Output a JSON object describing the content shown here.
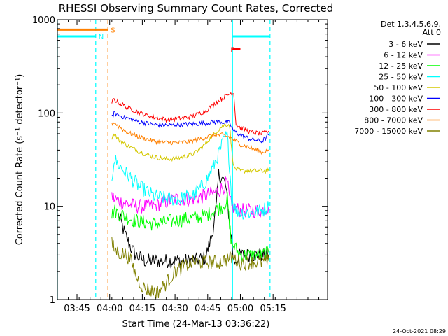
{
  "chart_data": {
    "type": "line",
    "title": "RHESSI Observing Summary Count Rates, Corrected",
    "xlabel": "Start Time (24-Mar-13 03:36:22)",
    "ylabel": "Corrected Count Rate (s⁻¹ detector⁻¹)",
    "yscale": "log",
    "ylim": [
      1,
      1000
    ],
    "xlim_min": [
      216,
      340
    ],
    "y_ticks": [
      {
        "value": 1,
        "label": "1"
      },
      {
        "value": 10,
        "label": "10"
      },
      {
        "value": 100,
        "label": "100"
      },
      {
        "value": 1000,
        "label": "1000"
      }
    ],
    "x_ticks": [
      {
        "value": 225,
        "label": "03:45"
      },
      {
        "value": 240,
        "label": "04:00"
      },
      {
        "value": 255,
        "label": "04:15"
      },
      {
        "value": 270,
        "label": "04:30"
      },
      {
        "value": 285,
        "label": "04:45"
      },
      {
        "value": 300,
        "label": "05:00"
      },
      {
        "value": 315,
        "label": "05:15"
      }
    ],
    "legend_header": [
      "Det 1,3,4,5,6,9,",
      "Att 0"
    ],
    "series": [
      {
        "name": "3 - 6 keV",
        "color": "#000000",
        "x": [
          244,
          245,
          247,
          250,
          252,
          256,
          262,
          270,
          278,
          284,
          287,
          289,
          290,
          293,
          295,
          297,
          300,
          304,
          310,
          313
        ],
        "y": [
          8,
          7,
          5,
          3.5,
          3,
          2.6,
          2.6,
          2.6,
          2.6,
          2.8,
          5,
          10,
          22,
          18,
          7,
          2.5,
          3,
          3,
          3,
          3
        ]
      },
      {
        "name": "6 - 12 keV",
        "color": "#ff00ff",
        "x": [
          241,
          242,
          246,
          252,
          260,
          270,
          278,
          284,
          288,
          292,
          294,
          295,
          296,
          300,
          305,
          310,
          313
        ],
        "y": [
          13,
          12,
          11,
          10,
          10,
          12,
          12,
          13,
          14,
          16,
          18,
          12,
          10,
          9,
          9,
          9,
          10
        ]
      },
      {
        "name": "12 - 25 keV",
        "color": "#00ff00",
        "x": [
          241,
          242,
          246,
          252,
          260,
          270,
          278,
          284,
          288,
          292,
          294,
          295,
          296,
          300,
          305,
          310,
          313
        ],
        "y": [
          8,
          9,
          8,
          7,
          6.5,
          7,
          7.5,
          8,
          9,
          10,
          12,
          6,
          4,
          3,
          3,
          3,
          3.2
        ]
      },
      {
        "name": "25 - 50 keV",
        "color": "#00ffff",
        "x": [
          241,
          242,
          244,
          248,
          254,
          260,
          266,
          272,
          278,
          282,
          285,
          288,
          291,
          293,
          294,
          295,
          296,
          298,
          302,
          306,
          310,
          313
        ],
        "y": [
          20,
          32,
          28,
          22,
          16,
          13,
          12,
          12,
          13,
          16,
          20,
          28,
          42,
          55,
          55,
          28,
          12,
          9,
          8.5,
          8.5,
          9,
          10
        ]
      },
      {
        "name": "50 - 100 keV",
        "color": "#d4c800",
        "x": [
          241,
          242,
          244,
          248,
          254,
          260,
          266,
          272,
          278,
          282,
          285,
          288,
          291,
          293,
          295,
          296,
          297,
          300,
          305,
          310,
          313
        ],
        "y": [
          55,
          60,
          52,
          45,
          38,
          34,
          32,
          33,
          36,
          42,
          50,
          60,
          70,
          75,
          75,
          40,
          26,
          24,
          24,
          24,
          24
        ]
      },
      {
        "name": "100 - 300 keV",
        "color": "#0000ff",
        "x": [
          241,
          242,
          244,
          248,
          254,
          260,
          266,
          272,
          278,
          284,
          288,
          292,
          295,
          297,
          300,
          305,
          310,
          313
        ],
        "y": [
          90,
          100,
          95,
          88,
          80,
          75,
          74,
          75,
          76,
          78,
          80,
          80,
          78,
          64,
          58,
          52,
          50,
          58
        ]
      },
      {
        "name": "300 - 800 keV",
        "color": "#ff0000",
        "x": [
          241,
          242,
          244,
          248,
          254,
          260,
          266,
          272,
          278,
          284,
          288,
          291,
          294,
          296,
          297,
          298,
          300,
          305,
          310,
          313
        ],
        "y": [
          130,
          140,
          130,
          115,
          100,
          90,
          85,
          87,
          92,
          105,
          125,
          140,
          155,
          165,
          160,
          75,
          70,
          62,
          60,
          64
        ]
      },
      {
        "name": "800 - 7000 keV",
        "color": "#ff8000",
        "x": [
          241,
          242,
          244,
          248,
          254,
          260,
          266,
          272,
          278,
          284,
          288,
          292,
          295,
          298,
          300,
          305,
          310,
          313
        ],
        "y": [
          75,
          80,
          72,
          62,
          55,
          50,
          48,
          48,
          50,
          55,
          58,
          58,
          55,
          50,
          46,
          42,
          38,
          40
        ]
      },
      {
        "name": "7000 - 15000 keV",
        "color": "#808000",
        "x": [
          241,
          242,
          244,
          248,
          250,
          252,
          256,
          262,
          266,
          270,
          278,
          284,
          290,
          296,
          300,
          305,
          310,
          313
        ],
        "y": [
          4,
          3.5,
          3.2,
          3,
          2.5,
          1.8,
          1.3,
          1.2,
          1.5,
          2,
          2.5,
          2.5,
          2.5,
          2.8,
          2.5,
          2.5,
          2.5,
          2.6
        ]
      }
    ],
    "vertical_lines": [
      {
        "x": 216,
        "color": "#00ffff",
        "style": "solid"
      },
      {
        "x": 233.6,
        "color": "#00ffff",
        "style": "dashed"
      },
      {
        "x": 239.2,
        "color": "#ff8000",
        "style": "dashed"
      },
      {
        "x": 296.4,
        "color": "#00ffff",
        "style": "solid"
      },
      {
        "x": 313.6,
        "color": "#00ffff",
        "style": "dashed"
      }
    ],
    "flag_bars": [
      {
        "label": "N",
        "color": "#00ffff",
        "x_start": 216,
        "x_end": 233.6,
        "y": 660,
        "label_x": 233.6
      },
      {
        "label": "S",
        "color": "#ff8000",
        "x_start": 216,
        "x_end": 239.2,
        "y": 780,
        "label_x": 239.2
      },
      {
        "label": "F",
        "color": "#ff0000",
        "x_start": 296.4,
        "x_end": 300,
        "y": 480,
        "label_x": 294.2
      },
      {
        "label": "",
        "color": "#00ffff",
        "x_start": 296.4,
        "x_end": 313.6,
        "y": 660,
        "label_x": 313.6
      }
    ],
    "timestamp": "24-Oct-2021 08:29"
  }
}
